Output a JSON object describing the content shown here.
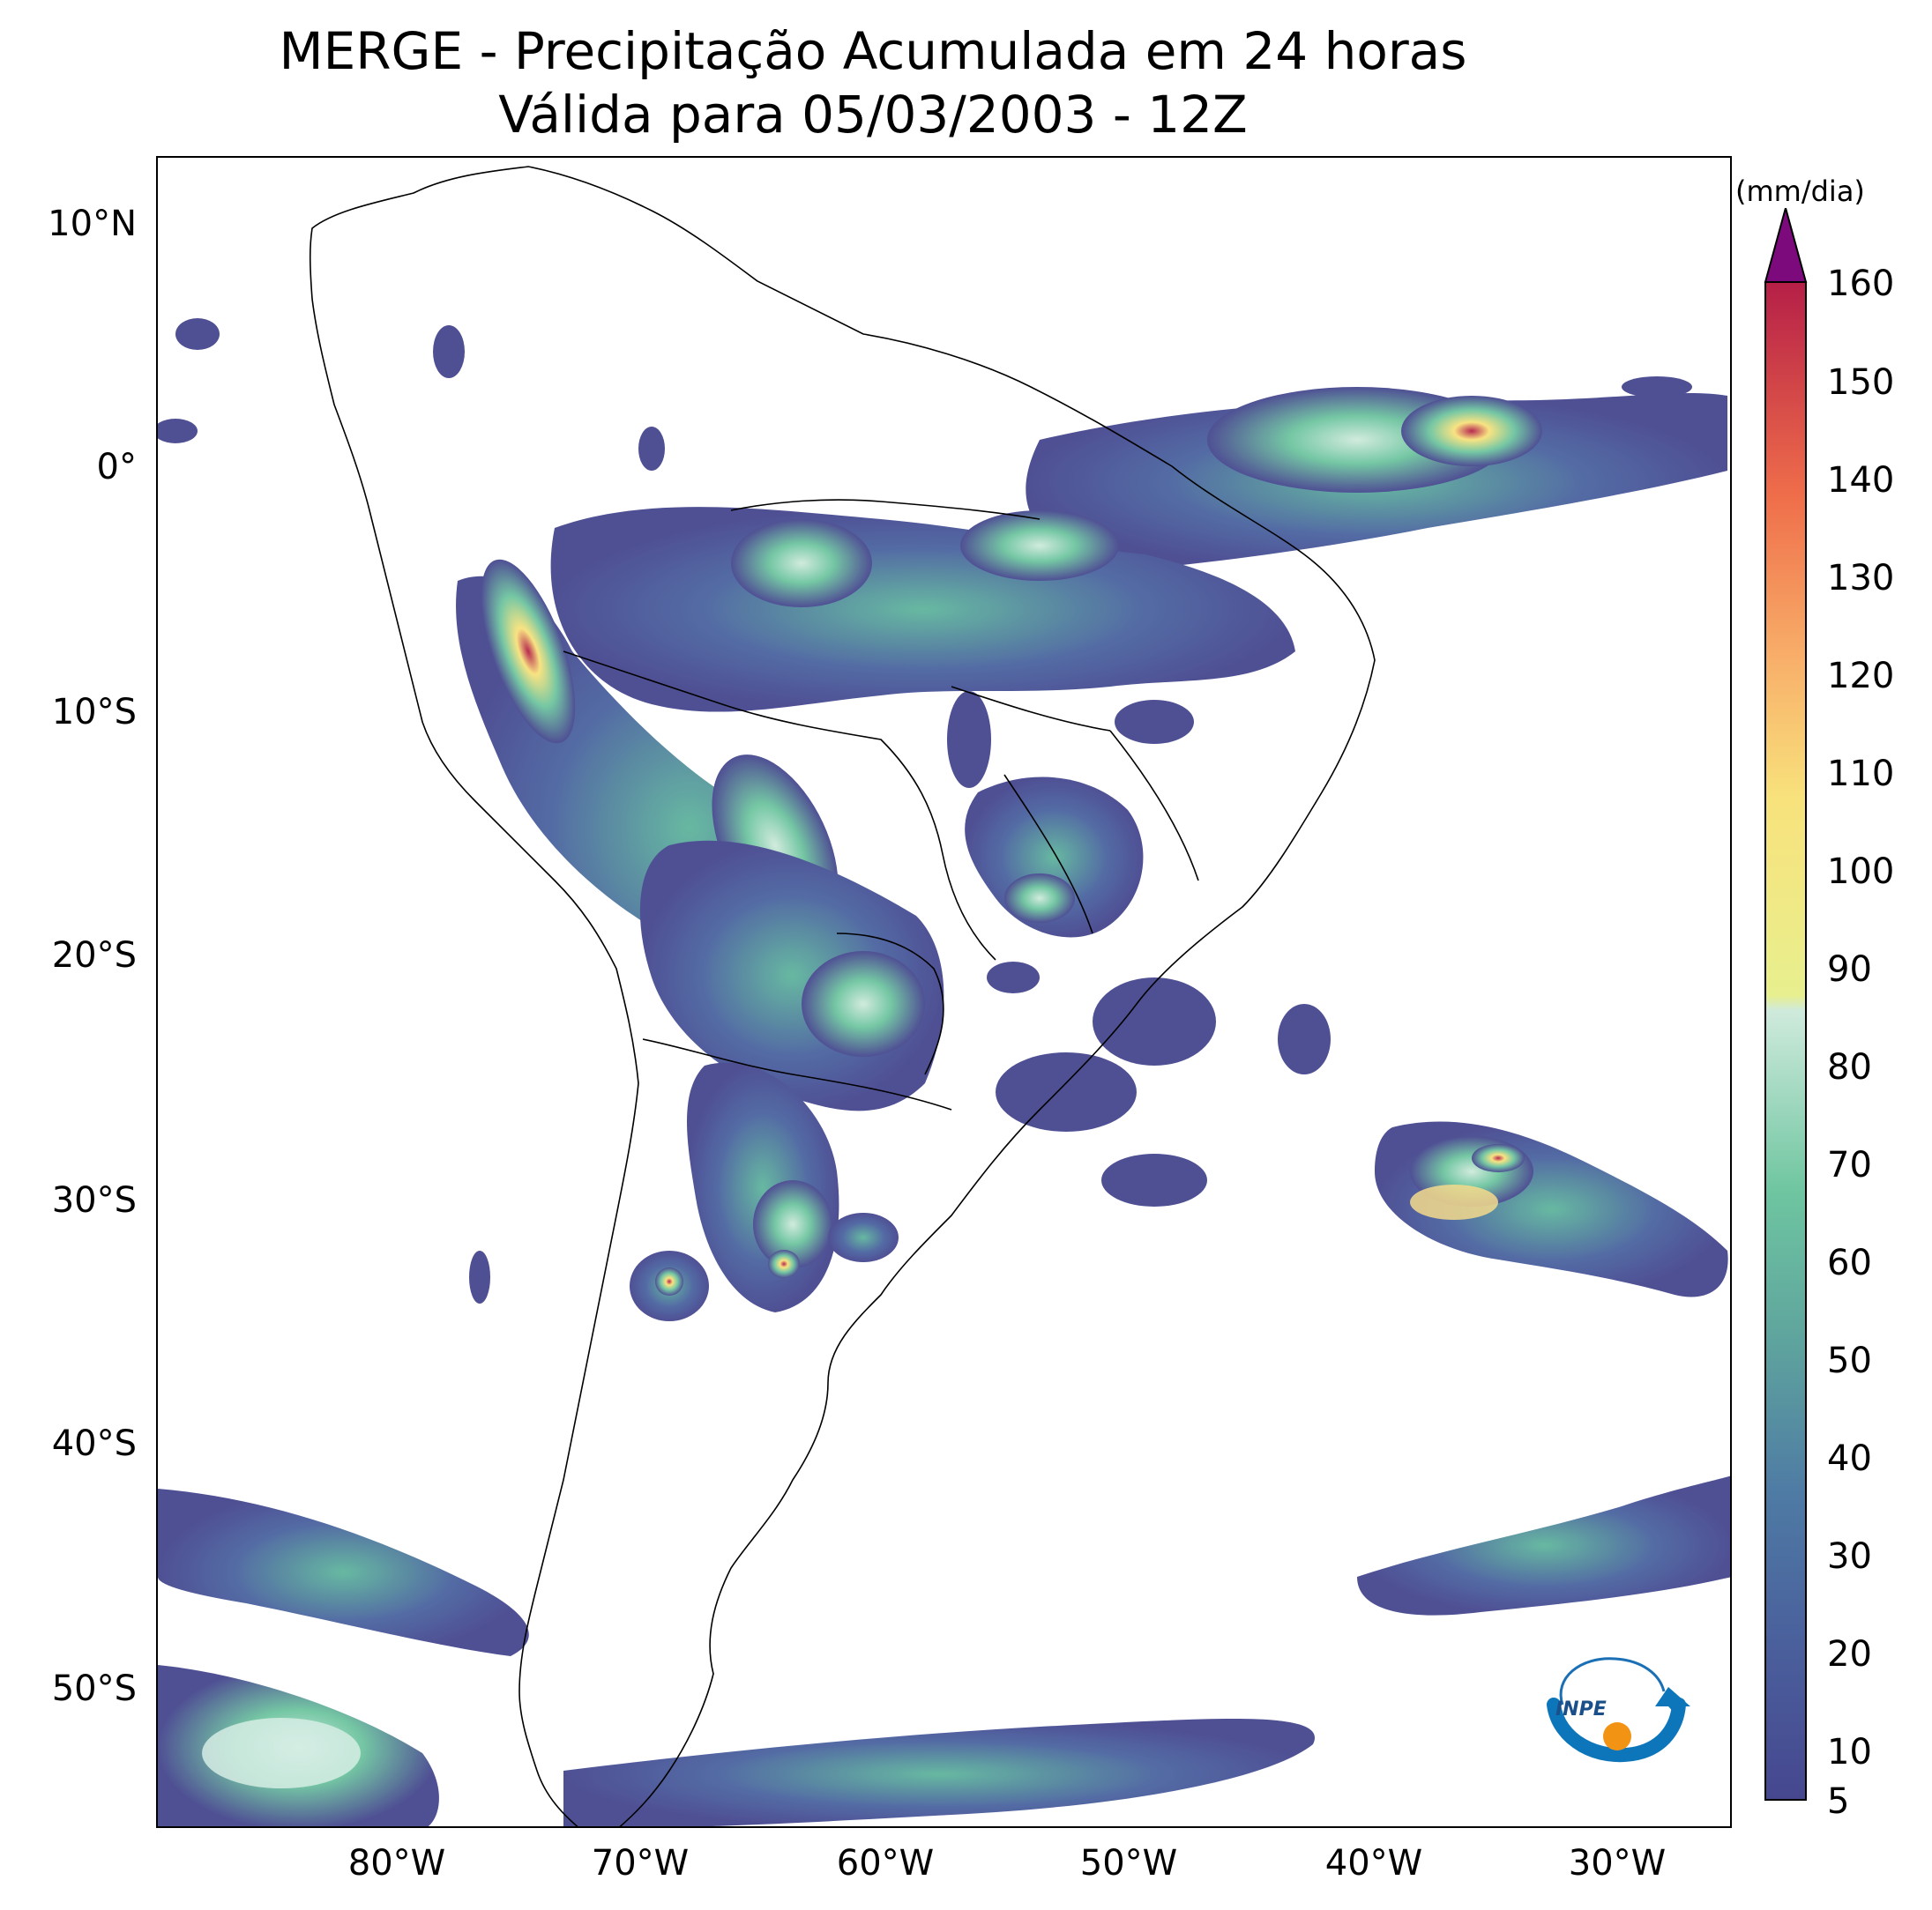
{
  "title_line1": "MERGE - Precipitação Acumulada em 24 horas",
  "title_line2": "Válida para 05/03/2003 - 12Z",
  "map": {
    "extent_lon": [
      -90,
      -25
    ],
    "extent_lat": [
      -56,
      13
    ],
    "lat_ticks": [
      "10°N",
      "0°",
      "10°S",
      "20°S",
      "30°S",
      "40°S",
      "50°S"
    ],
    "lon_ticks": [
      "80°W",
      "70°W",
      "60°W",
      "50°W",
      "40°W",
      "30°W"
    ]
  },
  "colorbar": {
    "units": "(mm/dia)",
    "labels": [
      "160",
      "150",
      "140",
      "130",
      "120",
      "110",
      "100",
      "90",
      "80",
      "70",
      "60",
      "50",
      "40",
      "30",
      "20",
      "10",
      "5"
    ],
    "low_color": "#46478f",
    "mid_color": "#6ec5a0",
    "high_color": "#f8e27c",
    "max_color": "#b51f47",
    "extend_color": "#7c0a7c"
  },
  "logo": {
    "text": "INPE",
    "icon": "inpe-logo-icon"
  }
}
